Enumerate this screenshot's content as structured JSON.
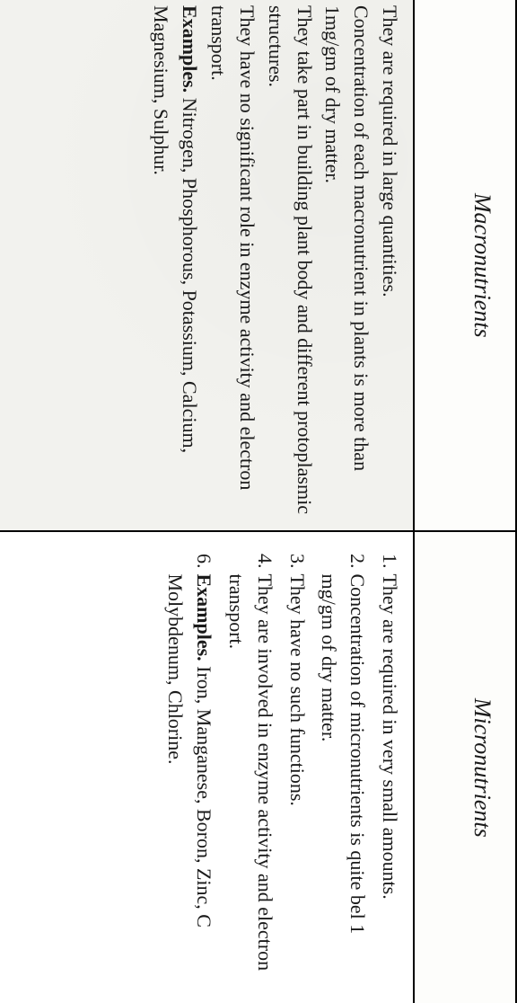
{
  "headers": {
    "left": "Macronutrients",
    "right": "Micronutrients"
  },
  "left_cell": {
    "l1": "They are required in large quantities.",
    "l2": "Concentration of each macronutrient in plants is more than 1mg/gm of dry  matter.",
    "l3": "They take part in building plant body and different protoplasmic structures.",
    "l4": "They have no significant role in enzyme activity and electron transport.",
    "l5a": "Examples.",
    "l5b": " Nitrogen, Phosphorous, Potassium, Calcium, Magnesium, Sulphur."
  },
  "right_cell": {
    "n1": "1.",
    "t1": "They are required in very small amounts.",
    "n2": "2.",
    "t2": "Concentration of micronutrients is quite bel 1 mg/gm of dry matter.",
    "n3": "3.",
    "t3": "They have no such functions.",
    "n4": "4.",
    "t4": "They are involved in enzyme activity and electron transport.",
    "n6": "6.",
    "t6a": "Examples.",
    "t6b": " Iron, Manganese, Boron, Zinc, C Molybdenum, Chlorine."
  }
}
